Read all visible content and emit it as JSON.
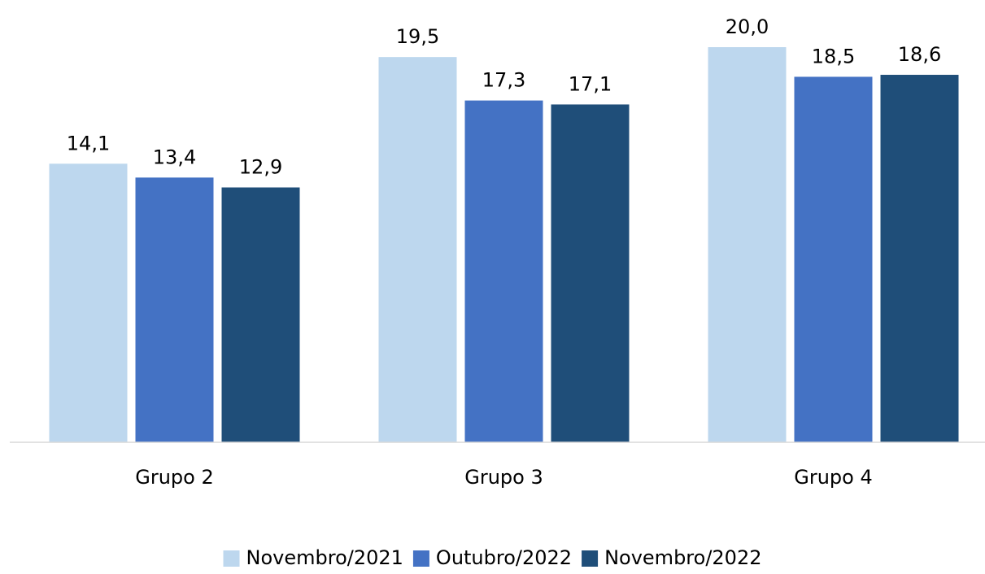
{
  "chart_data": {
    "type": "bar",
    "categories": [
      "Grupo 2",
      "Grupo 3",
      "Grupo 4"
    ],
    "series": [
      {
        "name": "Novembro/2021",
        "color": "#bdd7ee",
        "values": [
          14.1,
          19.5,
          20.0
        ],
        "value_labels": [
          "14,1",
          "19,5",
          "20,0"
        ]
      },
      {
        "name": "Outubro/2022",
        "color": "#4472c4",
        "values": [
          13.4,
          17.3,
          18.5
        ],
        "value_labels": [
          "13,4",
          "17,3",
          "18,5"
        ]
      },
      {
        "name": "Novembro/2022",
        "color": "#1f4e79",
        "values": [
          12.9,
          17.1,
          18.6
        ],
        "value_labels": [
          "12,9",
          "17,1",
          "18,6"
        ]
      }
    ],
    "legend": "bottom"
  }
}
